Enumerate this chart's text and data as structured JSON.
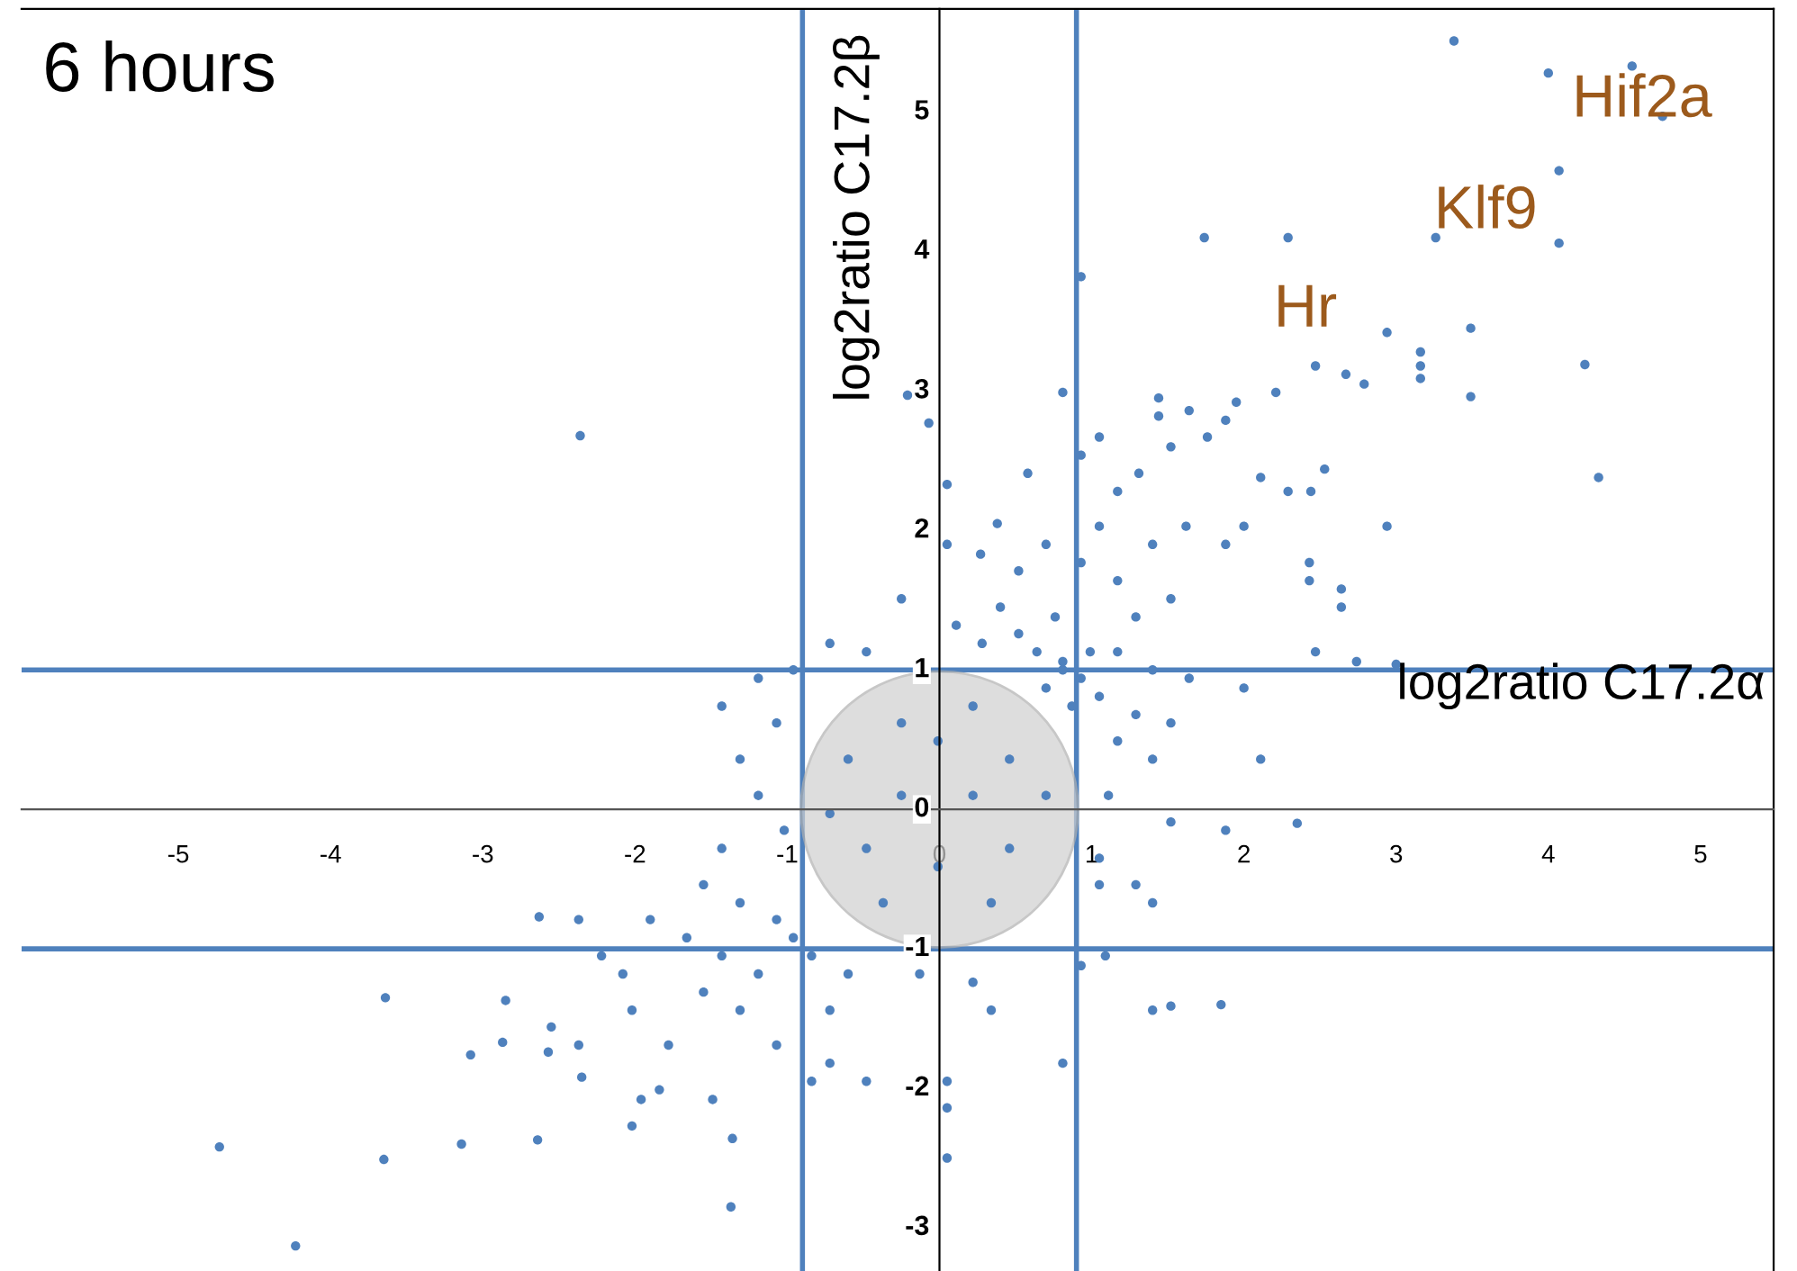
{
  "chart_data": {
    "type": "scatter",
    "title": "6 hours",
    "xlabel": "log2ratio C17.2α",
    "ylabel": "log2ratio C17.2β",
    "xlim": [
      -6.03,
      5.48
    ],
    "ylim": [
      -3.31,
      5.74
    ],
    "xticks": [
      -5,
      -4,
      -3,
      -2,
      -1,
      0,
      1,
      2,
      3,
      4,
      5
    ],
    "yticks": [
      -3,
      -2,
      -1,
      0,
      1,
      2,
      3,
      4,
      5
    ],
    "grid": false,
    "marker": "circle",
    "legend": false,
    "ref_lines": [
      {
        "axis": "x",
        "value": -0.9,
        "color": "#4f81bd"
      },
      {
        "axis": "x",
        "value": 0.9,
        "color": "#4f81bd"
      },
      {
        "axis": "y",
        "value": 1,
        "color": "#4f81bd"
      },
      {
        "axis": "y",
        "value": -1,
        "color": "#4f81bd"
      }
    ],
    "annotations": [
      {
        "text": "Hif2a",
        "x": 4.55,
        "y": 5.33
      },
      {
        "text": "Klf9",
        "x": 3.26,
        "y": 4.1
      },
      {
        "text": "Hr",
        "x": 2.47,
        "y": 3.18
      }
    ],
    "series": [
      {
        "color": "#4f81bd",
        "x": [
          3.38,
          4.0,
          4.55,
          4.75,
          4.07,
          4.07,
          3.26,
          1.74,
          2.29,
          0.93,
          3.49,
          2.94,
          4.24,
          3.16,
          3.16,
          3.16,
          2.47,
          2.67,
          2.79,
          3.49,
          2.21,
          4.33,
          2.94,
          -2.36,
          -0.21,
          -0.07,
          0.81,
          0.05,
          1.44,
          1.44,
          1.95,
          1.88,
          1.76,
          1.64,
          1.52,
          1.05,
          1.17,
          1.31,
          2.11,
          2.53,
          2.44,
          2.29,
          2.43,
          2.43,
          2.64,
          2.64,
          1.88,
          2.0,
          1.62,
          0.93,
          0.58,
          0.38,
          0.05,
          0.27,
          0.52,
          0.7,
          0.93,
          1.05,
          1.4,
          1.17,
          1.52,
          1.29,
          0.76,
          0.4,
          0.11,
          -0.25,
          -0.12,
          0.28,
          0.52,
          0.64,
          0.81,
          0.93,
          0.99,
          0.7,
          1.05,
          0.87,
          0.81,
          1.17,
          1.4,
          1.64,
          2.0,
          1.29,
          1.52,
          1.17,
          1.4,
          1.11,
          1.52,
          1.88,
          2.35,
          2.11,
          2.47,
          2.74,
          3.0,
          1.29,
          1.4,
          1.05,
          1.05,
          0.93,
          1.09,
          1.4,
          1.52,
          1.85,
          0.81,
          0.05,
          0.05,
          0.05,
          0.22,
          0.34,
          -0.13,
          -0.6,
          -0.25,
          0.22,
          0.46,
          -0.48,
          -0.01,
          0.46,
          -0.25,
          0.22,
          -0.72,
          0.7,
          -0.01,
          -0.37,
          0.34,
          -0.96,
          -1.19,
          -1.43,
          -1.07,
          -1.31,
          -1.19,
          -1.02,
          -1.43,
          -1.55,
          -1.31,
          -1.07,
          -0.96,
          -0.84,
          -0.6,
          -0.72,
          -1.19,
          -1.43,
          -1.66,
          -1.55,
          -1.31,
          -1.07,
          -0.72,
          -0.48,
          -1.9,
          -2.08,
          -2.02,
          -2.37,
          -2.55,
          -2.85,
          -2.37,
          -0.84,
          -1.78,
          -1.49,
          -1.36,
          -1.37,
          -4.73,
          -4.23,
          -3.65,
          -3.64,
          -3.14,
          -2.64,
          -2.35,
          -2.02,
          -3.08,
          -2.87,
          -2.57,
          -1.96,
          -1.84,
          -2.63,
          -2.22,
          -0.48,
          -0.72
        ],
        "values": [
          5.51,
          5.28,
          5.33,
          4.97,
          4.58,
          4.06,
          4.1,
          4.1,
          4.1,
          3.82,
          3.45,
          3.42,
          3.19,
          3.28,
          3.18,
          3.09,
          3.18,
          3.12,
          3.05,
          2.96,
          2.99,
          2.38,
          2.03,
          2.68,
          2.97,
          2.77,
          2.99,
          2.33,
          2.95,
          2.82,
          2.92,
          2.79,
          2.67,
          2.86,
          2.6,
          2.67,
          2.28,
          2.41,
          2.38,
          2.44,
          2.28,
          2.28,
          1.77,
          1.64,
          1.58,
          1.45,
          1.9,
          2.03,
          2.03,
          2.54,
          2.41,
          2.05,
          1.9,
          1.83,
          1.71,
          1.9,
          1.77,
          2.03,
          1.9,
          1.64,
          1.51,
          1.38,
          1.38,
          1.45,
          1.32,
          1.51,
          1.0,
          1.19,
          1.26,
          1.13,
          1.0,
          0.94,
          1.13,
          0.87,
          0.81,
          0.74,
          1.06,
          1.13,
          1.0,
          0.94,
          0.87,
          0.68,
          0.62,
          0.49,
          0.36,
          0.1,
          -0.09,
          -0.15,
          -0.1,
          0.36,
          1.13,
          1.06,
          1.04,
          -0.54,
          -0.67,
          -0.35,
          -0.54,
          -1.12,
          -1.05,
          -1.44,
          -1.41,
          -1.4,
          -1.82,
          -1.95,
          -2.14,
          -2.5,
          -1.24,
          -1.44,
          -1.18,
          0.36,
          0.62,
          0.74,
          0.36,
          -0.28,
          -0.41,
          -0.28,
          0.1,
          0.1,
          -0.03,
          0.1,
          0.49,
          -0.67,
          -0.67,
          1.0,
          0.94,
          0.74,
          0.62,
          0.36,
          0.1,
          -0.15,
          -0.28,
          -0.54,
          -0.67,
          -0.79,
          -0.92,
          -1.05,
          -1.18,
          -1.44,
          -1.18,
          -1.05,
          -0.92,
          -1.31,
          -1.44,
          -1.69,
          -1.82,
          -1.95,
          -0.79,
          -1.18,
          -1.44,
          -0.79,
          -1.56,
          -1.37,
          -1.69,
          -1.95,
          -1.69,
          -2.08,
          -2.36,
          -2.85,
          -2.42,
          -3.13,
          -2.51,
          -1.35,
          -2.4,
          -2.37,
          -1.92,
          -2.27,
          -1.76,
          -1.67,
          -1.74,
          -2.08,
          -2.01,
          -0.77,
          -1.05,
          1.13,
          1.19
        ]
      }
    ]
  }
}
